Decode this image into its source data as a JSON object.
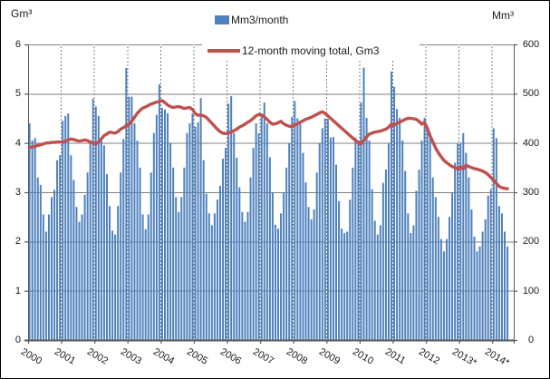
{
  "axes": {
    "left": {
      "unit": "Gm³",
      "ticks": [
        "0",
        "1",
        "2",
        "3",
        "4",
        "5",
        "6"
      ],
      "max": 6
    },
    "right": {
      "unit": "Mm³",
      "ticks": [
        "0",
        "100",
        "200",
        "300",
        "400",
        "500",
        "600"
      ],
      "max": 600
    },
    "x": {
      "labels": [
        "2000",
        "2001",
        "2002",
        "2003",
        "2004",
        "2005",
        "2006",
        "2007",
        "2008",
        "2009",
        "2010",
        "2011",
        "2012",
        "2013*",
        "2014*"
      ]
    }
  },
  "legend": {
    "items": [
      {
        "label": "Mm3/month",
        "swatch": "bar",
        "color": "#4F81BD"
      },
      {
        "label": "12-month moving total, Gm3",
        "swatch": "line",
        "color": "#C0504D"
      }
    ]
  },
  "colors": {
    "bar": "#4F81BD",
    "line": "#C0504D",
    "grid": "#808080",
    "axis": "#595959",
    "text": "#1a1a1a"
  },
  "chart_data": {
    "type": "bar",
    "title": "",
    "x_unit": "month",
    "x_start": "2000-01",
    "x_end": "2014-06",
    "grid": true,
    "legend_position": "top",
    "left_ylim": [
      0,
      6
    ],
    "right_ylim": [
      0,
      600
    ],
    "series": [
      {
        "name": "Mm3/month",
        "render": "bar",
        "axis": "right",
        "color": "#4F81BD",
        "values": [
          440,
          405,
          410,
          330,
          315,
          255,
          220,
          255,
          290,
          305,
          365,
          375,
          445,
          455,
          460,
          375,
          325,
          270,
          240,
          255,
          295,
          340,
          400,
          490,
          474,
          455,
          408,
          395,
          337,
          272,
          222,
          214,
          272,
          340,
          408,
          552,
          494,
          494,
          440,
          405,
          350,
          255,
          225,
          255,
          340,
          420,
          457,
          519,
          471,
          468,
          460,
          400,
          350,
          290,
          260,
          290,
          350,
          420,
          440,
          460,
          433,
          442,
          491,
          365,
          297,
          257,
          233,
          257,
          285,
          313,
          368,
          390,
          480,
          495,
          420,
          370,
          310,
          260,
          240,
          260,
          330,
          390,
          440,
          420,
          453,
          482,
          440,
          371,
          300,
          234,
          226,
          257,
          300,
          350,
          400,
          453,
          485,
          450,
          443,
          380,
          320,
          270,
          245,
          265,
          340,
          400,
          430,
          450,
          449,
          411,
          412,
          356,
          282,
          226,
          217,
          220,
          285,
          350,
          411,
          399,
          482,
          553,
          451,
          405,
          306,
          242,
          214,
          233,
          319,
          346,
          399,
          545,
          514,
          469,
          451,
          405,
          343,
          257,
          217,
          233,
          303,
          346,
          405,
          451,
          430,
          420,
          330,
          290,
          250,
          205,
          180,
          205,
          250,
          300,
          360,
          400,
          400,
          420,
          380,
          330,
          265,
          210,
          180,
          190,
          220,
          245,
          293,
          306,
          430,
          410,
          272,
          257,
          220,
          190
        ]
      },
      {
        "name": "12-month moving total, Gm3",
        "render": "line",
        "axis": "left",
        "color": "#C0504D",
        "values": [
          3.91,
          3.92,
          3.93,
          3.95,
          3.96,
          3.98,
          4.0,
          4.0,
          4.01,
          4.01,
          4.02,
          4.02,
          4.02,
          4.04,
          4.06,
          4.08,
          4.07,
          4.05,
          4.04,
          4.05,
          4.06,
          4.05,
          4.02,
          4.0,
          3.98,
          4.02,
          4.08,
          4.15,
          4.18,
          4.22,
          4.21,
          4.2,
          4.23,
          4.28,
          4.31,
          4.35,
          4.38,
          4.44,
          4.52,
          4.6,
          4.66,
          4.71,
          4.73,
          4.76,
          4.79,
          4.81,
          4.83,
          4.84,
          4.86,
          4.82,
          4.77,
          4.74,
          4.72,
          4.73,
          4.74,
          4.72,
          4.7,
          4.71,
          4.72,
          4.68,
          4.6,
          4.56,
          4.57,
          4.55,
          4.52,
          4.46,
          4.4,
          4.34,
          4.28,
          4.23,
          4.2,
          4.19,
          4.2,
          4.22,
          4.25,
          4.28,
          4.32,
          4.35,
          4.38,
          4.42,
          4.45,
          4.5,
          4.55,
          4.58,
          4.57,
          4.53,
          4.48,
          4.42,
          4.38,
          4.39,
          4.41,
          4.44,
          4.39,
          4.36,
          4.34,
          4.33,
          4.36,
          4.39,
          4.42,
          4.45,
          4.48,
          4.5,
          4.52,
          4.55,
          4.58,
          4.61,
          4.63,
          4.6,
          4.55,
          4.5,
          4.45,
          4.4,
          4.35,
          4.3,
          4.25,
          4.2,
          4.15,
          4.1,
          4.05,
          4.02,
          3.98,
          4.05,
          4.12,
          4.18,
          4.2,
          4.22,
          4.23,
          4.24,
          4.26,
          4.28,
          4.32,
          4.38,
          4.36,
          4.4,
          4.42,
          4.45,
          4.48,
          4.5,
          4.5,
          4.49,
          4.48,
          4.44,
          4.38,
          4.42,
          4.3,
          4.15,
          4.02,
          3.9,
          3.8,
          3.72,
          3.65,
          3.6,
          3.56,
          3.52,
          3.5,
          3.47,
          3.52,
          3.47,
          3.55,
          3.52,
          3.5,
          3.48,
          3.47,
          3.45,
          3.43,
          3.4,
          3.36,
          3.3,
          3.25,
          3.18,
          3.12,
          3.09,
          3.08,
          3.07
        ]
      }
    ]
  }
}
